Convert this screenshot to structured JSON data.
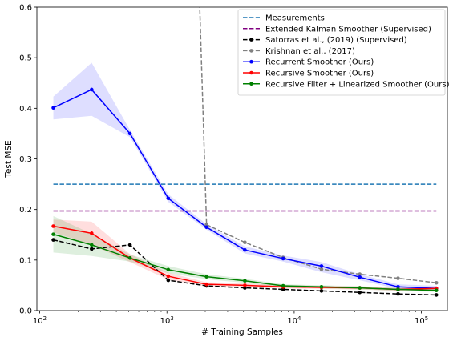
{
  "chart_data": {
    "type": "line",
    "xlabel": "# Training Samples",
    "ylabel": "Test MSE",
    "xscale": "log",
    "xlim": [
      95,
      160000
    ],
    "ylim": [
      0.0,
      0.6
    ],
    "grid": false,
    "legend_position": "top-right",
    "x_ticks": [
      {
        "value": 100,
        "base": "10",
        "exp": "2"
      },
      {
        "value": 1000,
        "base": "10",
        "exp": "3"
      },
      {
        "value": 10000,
        "base": "10",
        "exp": "4"
      },
      {
        "value": 100000,
        "base": "10",
        "exp": "5"
      }
    ],
    "y_ticks": [
      "0.0",
      "0.1",
      "0.2",
      "0.3",
      "0.4",
      "0.5",
      "0.6"
    ],
    "series": [
      {
        "name": "Measurements",
        "color": "#1f77b4",
        "style": "dashed",
        "marker": false,
        "x": [
          128,
          131072
        ],
        "y": [
          0.25,
          0.25
        ]
      },
      {
        "name": "Extended Kalman Smoother (Supervised)",
        "color": "#800080",
        "style": "dashed",
        "marker": false,
        "x": [
          128,
          131072
        ],
        "y": [
          0.197,
          0.197
        ]
      },
      {
        "name": "Satorras et al., (2019) (Supervised)",
        "color": "#000000",
        "style": "dashed",
        "marker": true,
        "x": [
          128,
          256,
          512,
          1024,
          2048,
          4096,
          8192,
          16384,
          32768,
          65536,
          131072
        ],
        "y": [
          0.14,
          0.122,
          0.13,
          0.06,
          0.049,
          0.045,
          0.042,
          0.039,
          0.036,
          0.033,
          0.031
        ]
      },
      {
        "name": "Krishnan et al., (2017)",
        "color": "#808080",
        "style": "dashed",
        "marker": true,
        "x": [
          1800,
          2048,
          4096,
          8192,
          16384,
          32768,
          65536,
          131072
        ],
        "y": [
          0.62,
          0.17,
          0.135,
          0.105,
          0.082,
          0.072,
          0.064,
          0.055
        ]
      },
      {
        "name": "Recurrent Smoother (Ours)",
        "color": "#0000ff",
        "style": "solid",
        "marker": true,
        "x": [
          128,
          256,
          512,
          1024,
          2048,
          4096,
          8192,
          16384,
          32768,
          65536,
          131072
        ],
        "y": [
          0.401,
          0.437,
          0.35,
          0.222,
          0.165,
          0.12,
          0.103,
          0.088,
          0.066,
          0.047,
          0.044
        ],
        "band_lo": [
          0.378,
          0.385,
          0.343,
          0.215,
          0.16,
          0.113,
          0.097,
          0.076,
          0.06,
          0.043,
          0.039
        ],
        "band_hi": [
          0.423,
          0.49,
          0.357,
          0.23,
          0.171,
          0.127,
          0.109,
          0.096,
          0.072,
          0.052,
          0.049
        ]
      },
      {
        "name": "Recursive Smoother (Ours)",
        "color": "#ff0000",
        "style": "solid",
        "marker": true,
        "x": [
          128,
          256,
          512,
          1024,
          2048,
          4096,
          8192,
          16384,
          32768,
          65536,
          131072
        ],
        "y": [
          0.167,
          0.153,
          0.104,
          0.068,
          0.052,
          0.05,
          0.047,
          0.046,
          0.045,
          0.042,
          0.044
        ],
        "band_lo": [
          0.155,
          0.13,
          0.096,
          0.061,
          0.048,
          0.046,
          0.044,
          0.043,
          0.042,
          0.039,
          0.041
        ],
        "band_hi": [
          0.18,
          0.176,
          0.112,
          0.075,
          0.056,
          0.054,
          0.05,
          0.049,
          0.048,
          0.045,
          0.047
        ]
      },
      {
        "name": "Recursive Filter + Linearized Smoother (Ours)",
        "color": "#008000",
        "style": "solid",
        "marker": true,
        "x": [
          128,
          256,
          512,
          1024,
          2048,
          4096,
          8192,
          16384,
          32768,
          65536,
          131072
        ],
        "y": [
          0.151,
          0.13,
          0.104,
          0.081,
          0.067,
          0.059,
          0.049,
          0.047,
          0.045,
          0.042,
          0.04
        ],
        "band_lo": [
          0.115,
          0.108,
          0.097,
          0.074,
          0.062,
          0.055,
          0.046,
          0.044,
          0.042,
          0.039,
          0.037
        ],
        "band_hi": [
          0.187,
          0.152,
          0.111,
          0.088,
          0.072,
          0.063,
          0.052,
          0.05,
          0.048,
          0.045,
          0.043
        ]
      }
    ]
  }
}
